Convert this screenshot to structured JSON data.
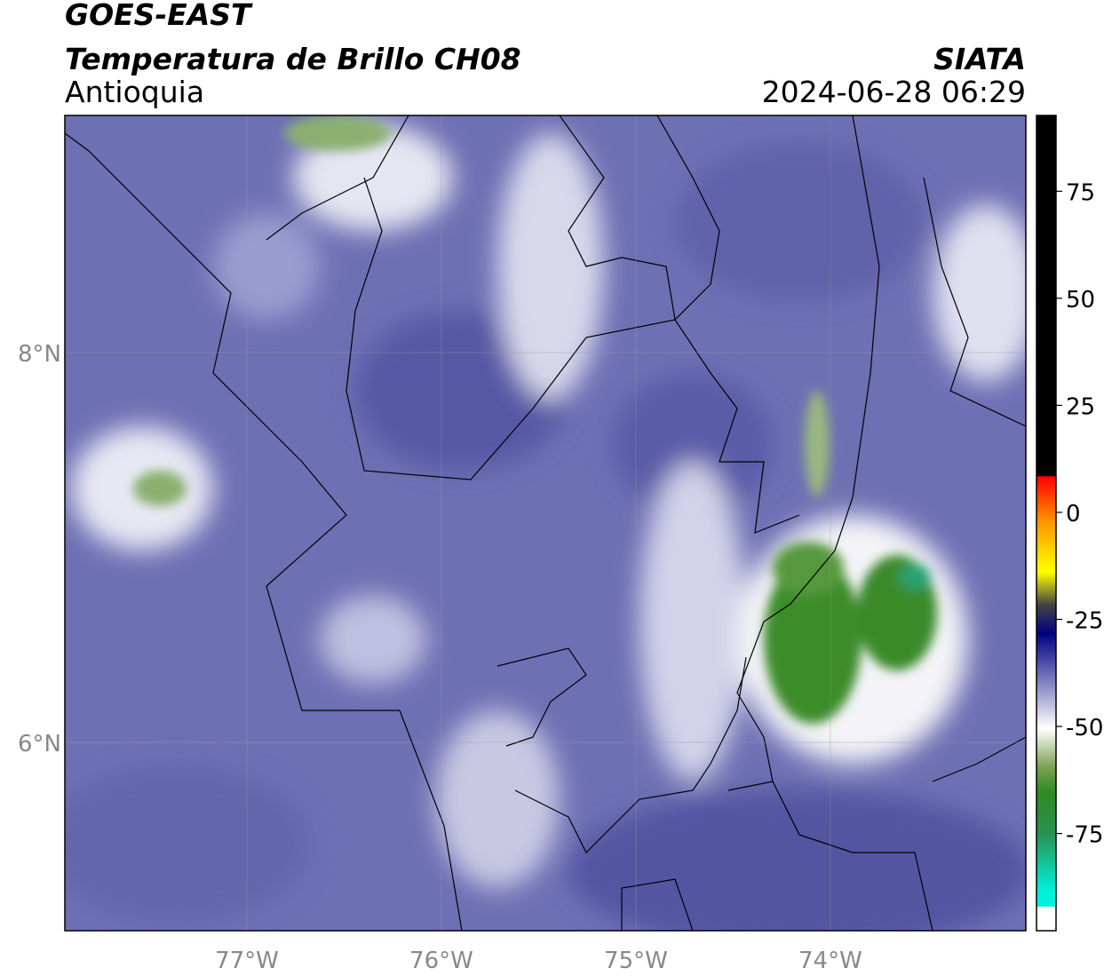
{
  "header": {
    "title": "GOES-EAST",
    "subtitle": "Temperatura de Brillo CH08",
    "region": "Antioquia",
    "source": "SIATA",
    "datetime": "2024-06-28 06:29"
  },
  "map": {
    "lonlim": [
      -77.936,
      -72.995
    ],
    "latlim": [
      5.034,
      9.216
    ],
    "lon_ticks": [
      {
        "value": -77,
        "label": "77°W"
      },
      {
        "value": -76,
        "label": "76°W"
      },
      {
        "value": -75,
        "label": "75°W"
      },
      {
        "value": -74,
        "label": "74°W"
      }
    ],
    "lat_ticks": [
      {
        "value": 8,
        "label": "8°N"
      },
      {
        "value": 6,
        "label": "6°N"
      }
    ]
  },
  "colorbar": {
    "lim": [
      -97.7,
      92.7
    ],
    "ticks": [
      75,
      50,
      25,
      0,
      -25,
      -50,
      -75
    ]
  }
}
